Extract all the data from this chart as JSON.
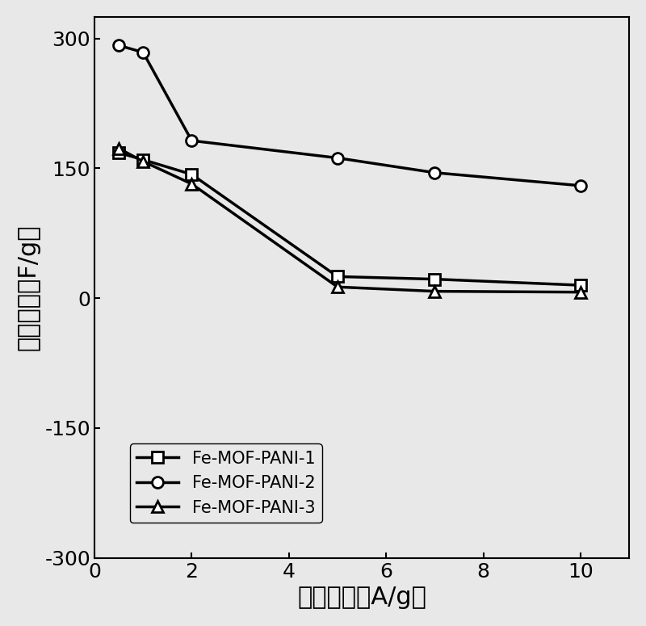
{
  "series": [
    {
      "label": "Fe-MOF-PANI-1",
      "x": [
        0.5,
        1,
        2,
        5,
        7,
        10
      ],
      "y": [
        168,
        160,
        143,
        25,
        22,
        15
      ],
      "marker": "s",
      "linewidth": 2.5
    },
    {
      "label": "Fe-MOF-PANI-2",
      "x": [
        0.5,
        1,
        2,
        5,
        7,
        10
      ],
      "y": [
        292,
        284,
        182,
        162,
        145,
        130
      ],
      "marker": "o",
      "linewidth": 2.5
    },
    {
      "label": "Fe-MOF-PANI-3",
      "x": [
        0.5,
        1,
        2,
        5,
        7,
        10
      ],
      "y": [
        173,
        158,
        132,
        13,
        8,
        7
      ],
      "marker": "^",
      "linewidth": 2.5
    }
  ],
  "xlabel": "电流密度（A/g）",
  "ylabel": "比电容量（F/g）",
  "xlim": [
    0,
    11
  ],
  "ylim": [
    -300,
    325
  ],
  "xticks": [
    0,
    2,
    4,
    6,
    8,
    10
  ],
  "yticks": [
    -300,
    -150,
    0,
    150,
    300
  ],
  "color": "#000000",
  "marker_size": 10,
  "marker_facecolor": "white",
  "xlabel_fontsize": 22,
  "ylabel_fontsize": 22,
  "tick_fontsize": 18,
  "legend_fontsize": 15,
  "fig_width": 8.0,
  "fig_height": 7.75,
  "background_color": "#e8e8e8"
}
